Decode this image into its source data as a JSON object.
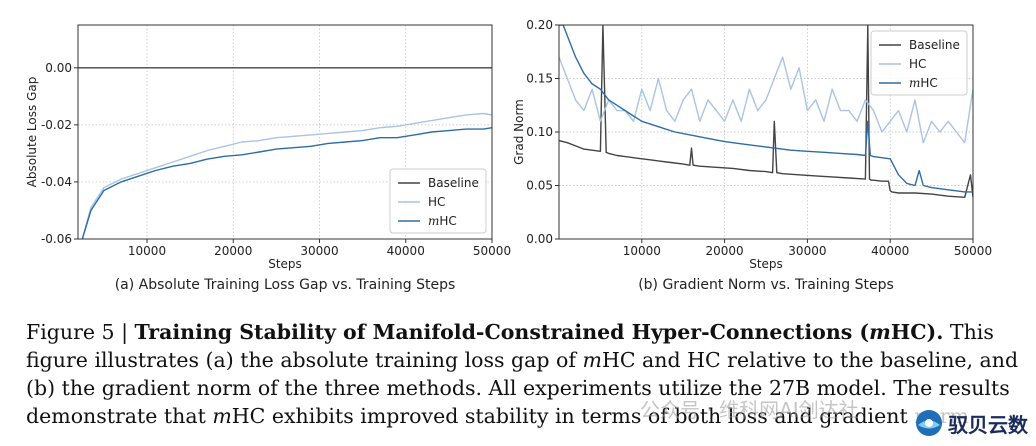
{
  "chart_data": [
    {
      "type": "line",
      "caption": "(a) Absolute Training Loss Gap vs. Training Steps",
      "xlabel": "Steps",
      "ylabel": "Absolute Loss Gap",
      "xlim": [
        2000,
        50000
      ],
      "ylim": [
        -0.06,
        0.015
      ],
      "xticks": [
        10000,
        20000,
        30000,
        40000,
        50000
      ],
      "xtick_labels": [
        "10000",
        "20000",
        "30000",
        "40000",
        "50000"
      ],
      "yticks": [
        -0.06,
        -0.04,
        -0.02,
        0.0
      ],
      "ytick_labels": [
        "-0.06",
        "-0.04",
        "-0.02",
        "0.00"
      ],
      "legend": {
        "position": "bottom-right",
        "entries": [
          "Baseline",
          "HC",
          "mHC"
        ]
      },
      "series": [
        {
          "name": "Baseline",
          "color": "#444444",
          "x": [
            2000,
            50000
          ],
          "y": [
            0.0,
            0.0
          ]
        },
        {
          "name": "HC",
          "color": "#a9c4e4",
          "x": [
            2500,
            3500,
            5000,
            7000,
            9000,
            11000,
            13000,
            15000,
            17000,
            19000,
            21000,
            23000,
            25000,
            27000,
            29000,
            31000,
            33000,
            35000,
            37000,
            39000,
            41000,
            43000,
            45000,
            47000,
            49000,
            50000
          ],
          "y": [
            -0.06,
            -0.049,
            -0.042,
            -0.039,
            -0.037,
            -0.035,
            -0.033,
            -0.031,
            -0.029,
            -0.0275,
            -0.026,
            -0.0255,
            -0.0245,
            -0.024,
            -0.0235,
            -0.023,
            -0.0225,
            -0.022,
            -0.021,
            -0.0205,
            -0.0195,
            -0.0185,
            -0.0175,
            -0.0165,
            -0.016,
            -0.0165
          ]
        },
        {
          "name": "mHC",
          "color": "#2e6da4",
          "x": [
            2500,
            3500,
            5000,
            7000,
            9000,
            11000,
            13000,
            15000,
            17000,
            19000,
            21000,
            23000,
            25000,
            27000,
            29000,
            31000,
            33000,
            35000,
            37000,
            39000,
            41000,
            43000,
            45000,
            47000,
            49000,
            50000
          ],
          "y": [
            -0.06,
            -0.05,
            -0.043,
            -0.04,
            -0.038,
            -0.036,
            -0.0345,
            -0.0335,
            -0.032,
            -0.031,
            -0.0305,
            -0.0295,
            -0.0285,
            -0.028,
            -0.0275,
            -0.0265,
            -0.026,
            -0.0255,
            -0.0245,
            -0.0245,
            -0.0235,
            -0.0225,
            -0.022,
            -0.0215,
            -0.0215,
            -0.021
          ]
        }
      ]
    },
    {
      "type": "line",
      "caption": "(b) Gradient Norm vs. Training Steps",
      "xlabel": "Steps",
      "ylabel": "Grad Norm",
      "xlim": [
        0,
        50000
      ],
      "ylim": [
        0.0,
        0.2
      ],
      "xticks": [
        10000,
        20000,
        30000,
        40000,
        50000
      ],
      "xtick_labels": [
        "10000",
        "20000",
        "30000",
        "40000",
        "50000"
      ],
      "yticks": [
        0.0,
        0.05,
        0.1,
        0.15,
        0.2
      ],
      "ytick_labels": [
        "0.00",
        "0.05",
        "0.10",
        "0.15",
        "0.20"
      ],
      "legend": {
        "position": "top-right",
        "entries": [
          "Baseline",
          "HC",
          "mHC"
        ]
      },
      "series": [
        {
          "name": "Baseline",
          "color": "#444444",
          "x": [
            0,
            1000,
            2000,
            3000,
            4000,
            5000,
            5300,
            5700,
            6000,
            7000,
            8000,
            9000,
            10000,
            11000,
            12000,
            13000,
            14000,
            15000,
            15800,
            16000,
            16200,
            17000,
            19000,
            21000,
            23000,
            25000,
            25800,
            26000,
            26300,
            27000,
            29000,
            31000,
            33000,
            35000,
            37000,
            37300,
            37500,
            37700,
            38000,
            39000,
            39800,
            40000,
            40200,
            41000,
            43000,
            45000,
            47000,
            49000,
            49700,
            50000
          ],
          "y": [
            0.092,
            0.09,
            0.087,
            0.084,
            0.083,
            0.082,
            0.2,
            0.081,
            0.08,
            0.078,
            0.077,
            0.076,
            0.075,
            0.074,
            0.073,
            0.072,
            0.071,
            0.07,
            0.069,
            0.085,
            0.069,
            0.068,
            0.067,
            0.066,
            0.064,
            0.063,
            0.062,
            0.11,
            0.062,
            0.061,
            0.06,
            0.059,
            0.058,
            0.057,
            0.056,
            0.2,
            0.056,
            0.055,
            0.055,
            0.054,
            0.054,
            0.045,
            0.044,
            0.043,
            0.043,
            0.042,
            0.04,
            0.039,
            0.06,
            0.039
          ]
        },
        {
          "name": "HC",
          "color": "#a9c4e4",
          "x": [
            0,
            1000,
            2000,
            3000,
            4000,
            5000,
            6000,
            7000,
            8000,
            9000,
            10000,
            11000,
            12000,
            13000,
            14000,
            15000,
            16000,
            17000,
            18000,
            19000,
            20000,
            21000,
            22000,
            23000,
            24000,
            25000,
            26000,
            27000,
            28000,
            29000,
            30000,
            31000,
            32000,
            33000,
            34000,
            35000,
            36000,
            37000,
            38000,
            39000,
            40000,
            41000,
            42000,
            43000,
            44000,
            45000,
            46000,
            47000,
            48000,
            49000,
            50000
          ],
          "y": [
            0.17,
            0.15,
            0.13,
            0.12,
            0.14,
            0.11,
            0.13,
            0.12,
            0.12,
            0.11,
            0.14,
            0.12,
            0.15,
            0.12,
            0.11,
            0.13,
            0.14,
            0.11,
            0.13,
            0.12,
            0.11,
            0.13,
            0.11,
            0.14,
            0.12,
            0.13,
            0.15,
            0.17,
            0.14,
            0.16,
            0.12,
            0.13,
            0.11,
            0.14,
            0.12,
            0.12,
            0.11,
            0.13,
            0.12,
            0.1,
            0.11,
            0.12,
            0.1,
            0.13,
            0.09,
            0.11,
            0.1,
            0.11,
            0.1,
            0.09,
            0.14
          ]
        },
        {
          "name": "mHC",
          "color": "#2e6da4",
          "x": [
            0,
            500,
            1000,
            2000,
            3000,
            4000,
            5000,
            6000,
            7000,
            8000,
            9000,
            10000,
            12000,
            14000,
            16000,
            18000,
            20000,
            22000,
            24000,
            26000,
            28000,
            30000,
            32000,
            34000,
            36000,
            37000,
            37300,
            37600,
            38000,
            39000,
            40000,
            41000,
            42000,
            43000,
            43500,
            44000,
            45000,
            46000,
            47000,
            48000,
            49000,
            50000
          ],
          "y": [
            0.2,
            0.2,
            0.19,
            0.17,
            0.155,
            0.145,
            0.14,
            0.13,
            0.125,
            0.12,
            0.115,
            0.11,
            0.105,
            0.1,
            0.097,
            0.094,
            0.091,
            0.089,
            0.087,
            0.085,
            0.083,
            0.082,
            0.081,
            0.08,
            0.079,
            0.078,
            0.11,
            0.078,
            0.077,
            0.076,
            0.075,
            0.06,
            0.052,
            0.05,
            0.064,
            0.05,
            0.048,
            0.047,
            0.046,
            0.045,
            0.044,
            0.044
          ]
        }
      ]
    }
  ],
  "figure_caption": {
    "prefix": "Figure 5 | ",
    "title_part1": "Training Stability of Manifold-Constrained Hyper-Connections (",
    "title_m": "m",
    "title_part2": "HC).",
    "body_part1": " This figure illustrates (a) the absolute training loss gap of ",
    "m1": "m",
    "body_part2": "HC and HC relative to the baseline, and (b) the gradient norm of the three methods. All experiments utilize the 27B model. The results demonstrate that ",
    "m2": "m",
    "body_part3": "HC exhibits improved stability in terms of both loss and gradient norm."
  },
  "watermark": "公众号 · 维科网AI剑达社",
  "brand": "驭贝云数"
}
